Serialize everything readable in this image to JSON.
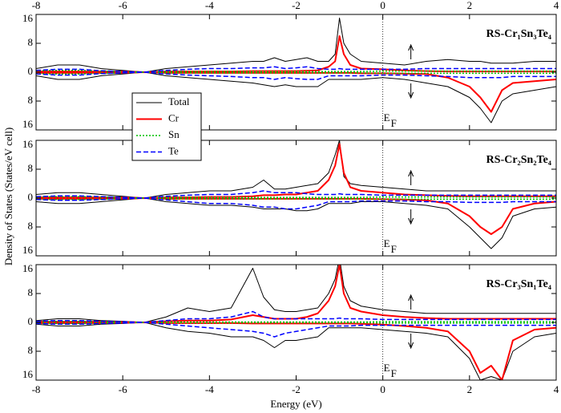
{
  "chart_data": [
    {
      "type": "line",
      "title": "RS-Cr₁Sn₃Te₄",
      "ef": "E",
      "ef_sub": "F",
      "x": [
        -8,
        -7.5,
        -7,
        -6.5,
        -6,
        -5.5,
        -5,
        -4.5,
        -4,
        -3.5,
        -3,
        -2.75,
        -2.5,
        -2.25,
        -2,
        -1.75,
        -1.5,
        -1.25,
        -1.1,
        -1,
        -0.9,
        -0.75,
        -0.5,
        0,
        0.5,
        1,
        1.5,
        2,
        2.25,
        2.5,
        2.75,
        3,
        3.5,
        4
      ],
      "xlim": [
        -8,
        4
      ],
      "xticks": [
        -8,
        -6,
        -4,
        -2,
        0,
        2,
        4
      ],
      "ylim": [
        -16,
        16
      ],
      "yticks": [
        {
          "value": -16,
          "label": "16"
        },
        {
          "value": -8,
          "label": "8"
        },
        0,
        8,
        16
      ],
      "series": [
        {
          "name": "Total",
          "color": "#000000",
          "dash": "none",
          "width": 1,
          "values": [
            1,
            2,
            2,
            1,
            0.5,
            0,
            1,
            1.5,
            2,
            2.5,
            3,
            3,
            4,
            3,
            3.5,
            4,
            3,
            3,
            5,
            15,
            8,
            5,
            3,
            2.5,
            2,
            3,
            3.5,
            3,
            3,
            2.5,
            2.5,
            2.5,
            3,
            3
          ],
          "values_down": [
            -1,
            -2,
            -2,
            -1,
            -0.5,
            0,
            -1,
            -1.5,
            -2,
            -2.5,
            -3,
            -3.5,
            -4,
            -3.5,
            -4,
            -4,
            -4,
            -2,
            -2,
            -2,
            -2,
            -2,
            -2,
            -1.5,
            -2,
            -3,
            -4,
            -7,
            -10,
            -14,
            -8,
            -6,
            -5,
            -4
          ]
        },
        {
          "name": "Cr",
          "color": "#ff0000",
          "dash": "none",
          "width": 2,
          "values": [
            0.2,
            0.2,
            0.2,
            0.2,
            0.2,
            0,
            0.2,
            0.2,
            0.2,
            0.2,
            0.3,
            0.3,
            0.3,
            0.3,
            0.3,
            0.4,
            0.5,
            1.5,
            3,
            10,
            5,
            2,
            1,
            0.8,
            0.5,
            0.3,
            0.2,
            0.2,
            0.2,
            0.2,
            0.2,
            0.2,
            0.2,
            0.2
          ],
          "values_down": [
            -0.2,
            -0.2,
            -0.2,
            -0.2,
            -0.2,
            0,
            -0.2,
            -0.2,
            -0.2,
            -0.2,
            -0.2,
            -0.2,
            -0.2,
            -0.2,
            -0.2,
            -0.2,
            -0.2,
            -0.2,
            -0.2,
            -0.2,
            -0.2,
            -0.2,
            -0.3,
            -0.3,
            -0.4,
            -0.5,
            -1.5,
            -4,
            -7,
            -11,
            -5,
            -3,
            -2.5,
            -2
          ]
        },
        {
          "name": "Sn",
          "color": "#00c000",
          "dash": "2,2",
          "width": 1.5,
          "values": [
            0.4,
            0.5,
            0.5,
            0.3,
            0.2,
            0,
            0.2,
            0.2,
            0.2,
            0.2,
            0.2,
            0.2,
            0.2,
            0.2,
            0.2,
            0.2,
            0.2,
            0.2,
            0.2,
            0.2,
            0.2,
            0.2,
            0.2,
            0.3,
            0.3,
            0.3,
            0.3,
            0.3,
            0.3,
            0.3,
            0.3,
            0.3,
            0.3,
            0.3
          ],
          "values_down": [
            -0.4,
            -0.5,
            -0.5,
            -0.3,
            -0.2,
            0,
            -0.2,
            -0.2,
            -0.2,
            -0.2,
            -0.2,
            -0.2,
            -0.2,
            -0.2,
            -0.2,
            -0.2,
            -0.2,
            -0.2,
            -0.2,
            -0.2,
            -0.2,
            -0.2,
            -0.2,
            -0.3,
            -0.3,
            -0.3,
            -0.3,
            -0.3,
            -0.3,
            -0.3,
            -0.3,
            -0.3,
            -0.3,
            -0.3
          ]
        },
        {
          "name": "Te",
          "color": "#0000ff",
          "dash": "6,3",
          "width": 1.5,
          "values": [
            0.5,
            0.8,
            0.8,
            0.4,
            0.2,
            0,
            0.5,
            0.8,
            1,
            1,
            1.2,
            1.2,
            1.5,
            1,
            1.2,
            1.5,
            1,
            0.8,
            0.8,
            1,
            0.8,
            0.8,
            0.8,
            0.8,
            0.8,
            1,
            1,
            1,
            1,
            1,
            1,
            1,
            1,
            1
          ],
          "values_down": [
            -0.5,
            -0.8,
            -0.8,
            -0.4,
            -0.2,
            0,
            -0.5,
            -0.8,
            -1,
            -1.2,
            -1.5,
            -1.5,
            -2,
            -1.5,
            -1.8,
            -2,
            -2,
            -1,
            -1,
            -1,
            -1,
            -1,
            -1,
            -0.8,
            -0.8,
            -1,
            -1.2,
            -1.5,
            -1.5,
            -1.5,
            -1.5,
            -1.2,
            -1.2,
            -1.2
          ]
        }
      ]
    },
    {
      "type": "line",
      "title": "RS-Cr₂Sn₂Te₄",
      "ef": "E",
      "ef_sub": "F",
      "ylabel": "Density of States (States/eV cell)",
      "x": [
        -8,
        -7.5,
        -7,
        -6.5,
        -6,
        -5.5,
        -5,
        -4.5,
        -4,
        -3.5,
        -3,
        -2.75,
        -2.5,
        -2.25,
        -2,
        -1.75,
        -1.5,
        -1.25,
        -1.1,
        -1,
        -0.9,
        -0.75,
        -0.5,
        0,
        0.5,
        1,
        1.5,
        2,
        2.25,
        2.5,
        2.75,
        3,
        3.5,
        4
      ],
      "xlim": [
        -8,
        4
      ],
      "xticks": [
        -8,
        -6,
        -4,
        -2,
        0,
        2,
        4
      ],
      "ylim": [
        -16,
        16
      ],
      "yticks": [
        {
          "value": -16,
          "label": "16"
        },
        {
          "value": -8,
          "label": "8"
        },
        0,
        8,
        16
      ],
      "series": [
        {
          "color": "#000000",
          "dash": "none",
          "width": 1,
          "values": [
            1,
            1.5,
            1.5,
            1,
            0.5,
            0,
            1,
            1.5,
            2,
            2,
            3,
            5,
            2.5,
            2.5,
            3,
            3.5,
            4,
            7,
            12,
            16,
            6,
            4,
            3.5,
            3,
            2.5,
            2,
            2,
            2,
            2,
            2,
            2,
            2,
            2,
            2
          ],
          "values_down": [
            -1,
            -1.5,
            -1.5,
            -1,
            -0.5,
            0,
            -1,
            -1.5,
            -2,
            -2,
            -2.5,
            -3,
            -3,
            -3,
            -3.5,
            -3.5,
            -3,
            -1.5,
            -1.5,
            -1.5,
            -1.5,
            -1.5,
            -1,
            -1,
            -1.5,
            -2,
            -3,
            -8,
            -11,
            -14,
            -11,
            -5,
            -3,
            -2.5
          ]
        },
        {
          "color": "#ff0000",
          "dash": "none",
          "width": 2,
          "values": [
            0.2,
            0.2,
            0.2,
            0.2,
            0.2,
            0,
            0.2,
            0.2,
            0.3,
            0.3,
            0.5,
            0.8,
            0.8,
            1,
            1,
            1.5,
            2,
            5,
            9,
            15,
            7,
            3,
            2,
            1.5,
            1,
            0.8,
            0.6,
            0.5,
            0.5,
            0.5,
            0.5,
            0.5,
            0.5,
            0.5
          ],
          "values_down": [
            -0.2,
            -0.2,
            -0.2,
            -0.2,
            -0.2,
            0,
            -0.2,
            -0.2,
            -0.2,
            -0.2,
            -0.2,
            -0.2,
            -0.2,
            -0.2,
            -0.2,
            -0.2,
            -0.2,
            -0.2,
            -0.2,
            -0.2,
            -0.2,
            -0.2,
            -0.2,
            -0.3,
            -0.4,
            -0.6,
            -1.5,
            -5,
            -8,
            -10,
            -8,
            -3,
            -1.5,
            -1
          ]
        },
        {
          "color": "#00c000",
          "dash": "2,2",
          "width": 1.5,
          "values": [
            0.3,
            0.4,
            0.4,
            0.3,
            0.2,
            0,
            0.2,
            0.2,
            0.2,
            0.2,
            0.2,
            0.2,
            0.2,
            0.2,
            0.2,
            0.2,
            0.2,
            0.2,
            0.2,
            0.2,
            0.2,
            0.2,
            0.2,
            0.3,
            0.3,
            0.3,
            0.3,
            0.3,
            0.3,
            0.3,
            0.3,
            0.3,
            0.3,
            0.3
          ],
          "values_down": [
            -0.3,
            -0.4,
            -0.4,
            -0.3,
            -0.2,
            0,
            -0.2,
            -0.2,
            -0.2,
            -0.2,
            -0.2,
            -0.2,
            -0.2,
            -0.2,
            -0.2,
            -0.2,
            -0.2,
            -0.2,
            -0.2,
            -0.2,
            -0.2,
            -0.2,
            -0.2,
            -0.3,
            -0.3,
            -0.3,
            -0.3,
            -0.3,
            -0.3,
            -0.3,
            -0.3,
            -0.3,
            -0.3,
            -0.3
          ]
        },
        {
          "color": "#0000ff",
          "dash": "6,3",
          "width": 1.5,
          "values": [
            0.4,
            0.6,
            0.6,
            0.4,
            0.2,
            0,
            0.5,
            0.8,
            1,
            1,
            1.5,
            2,
            1.5,
            1.5,
            1.5,
            1.2,
            1,
            1,
            1,
            1.2,
            1,
            1,
            1,
            0.8,
            0.8,
            0.8,
            0.8,
            0.8,
            0.8,
            0.8,
            0.8,
            0.8,
            0.8,
            0.8
          ],
          "values_down": [
            -0.4,
            -0.6,
            -0.6,
            -0.4,
            -0.2,
            0,
            -0.5,
            -1,
            -1.5,
            -1.5,
            -2,
            -2.5,
            -2.5,
            -3,
            -3,
            -2.5,
            -2,
            -1,
            -1,
            -1,
            -1,
            -1,
            -0.8,
            -0.8,
            -0.8,
            -1,
            -1,
            -1.2,
            -1.2,
            -1.2,
            -1.2,
            -1,
            -1,
            -1
          ]
        }
      ]
    },
    {
      "type": "line",
      "title": "RS-Cr₃Sn₁Te₄",
      "ef": "E",
      "ef_sub": "F",
      "xlabel": "Energy (eV)",
      "x": [
        -8,
        -7.5,
        -7,
        -6.5,
        -6,
        -5.5,
        -5,
        -4.5,
        -4,
        -3.5,
        -3,
        -2.75,
        -2.5,
        -2.25,
        -2,
        -1.75,
        -1.5,
        -1.25,
        -1.1,
        -1,
        -0.9,
        -0.75,
        -0.5,
        0,
        0.5,
        1,
        1.5,
        2,
        2.25,
        2.5,
        2.75,
        3,
        3.5,
        4
      ],
      "xlim": [
        -8,
        4
      ],
      "xticks": [
        -8,
        -6,
        -4,
        -2,
        0,
        2,
        4
      ],
      "ylim": [
        -16,
        16
      ],
      "yticks": [
        {
          "value": -16,
          "label": "16"
        },
        {
          "value": -8,
          "label": "8"
        },
        0,
        8,
        16
      ],
      "series": [
        {
          "color": "#000000",
          "dash": "none",
          "width": 1,
          "values": [
            0.5,
            1,
            1,
            0.5,
            0.3,
            0,
            1.5,
            4,
            3,
            4,
            15,
            7,
            3.5,
            3,
            3,
            3.5,
            4,
            8,
            12,
            18,
            10,
            6,
            4.5,
            3.5,
            3,
            2.5,
            2.5,
            2.5,
            2.5,
            2.5,
            2.5,
            2.5,
            2.5,
            2.5
          ],
          "values_down": [
            -0.5,
            -1,
            -1,
            -0.5,
            -0.3,
            0,
            -1.5,
            -2.5,
            -3,
            -4,
            -4,
            -5,
            -7,
            -5,
            -5,
            -4.5,
            -4,
            -1.5,
            -1.5,
            -1.5,
            -1.5,
            -1.5,
            -1.5,
            -2,
            -2.5,
            -3,
            -4,
            -10,
            -16,
            -15,
            -16,
            -8,
            -4,
            -3
          ]
        },
        {
          "color": "#ff0000",
          "dash": "none",
          "width": 2,
          "values": [
            0.2,
            0.2,
            0.2,
            0.2,
            0.1,
            0,
            0.3,
            0.5,
            0.5,
            0.8,
            2,
            1.5,
            1,
            1,
            1,
            1.5,
            2.5,
            6,
            10,
            16,
            8,
            4,
            3,
            2,
            1.5,
            1.2,
            1,
            1,
            1,
            1,
            1,
            1,
            1,
            1
          ],
          "values_down": [
            -0.2,
            -0.2,
            -0.2,
            -0.2,
            -0.1,
            0,
            -0.2,
            -0.2,
            -0.2,
            -0.2,
            -0.3,
            -0.3,
            -0.3,
            -0.3,
            -0.3,
            -0.3,
            -0.3,
            -0.3,
            -0.3,
            -0.3,
            -0.3,
            -0.3,
            -0.4,
            -0.6,
            -1,
            -1.5,
            -2.5,
            -8,
            -14,
            -12,
            -16,
            -5,
            -2,
            -1.5
          ]
        },
        {
          "color": "#00c000",
          "dash": "2,2",
          "width": 1.5,
          "values": [
            0.2,
            0.3,
            0.3,
            0.2,
            0.1,
            0,
            0.1,
            0.1,
            0.1,
            0.1,
            0.1,
            0.1,
            0.1,
            0.1,
            0.1,
            0.1,
            0.1,
            0.1,
            0.1,
            0.1,
            0.1,
            0.1,
            0.1,
            0.2,
            0.2,
            0.2,
            0.2,
            0.2,
            0.2,
            0.2,
            0.2,
            0.2,
            0.2,
            0.2
          ],
          "values_down": [
            -0.2,
            -0.3,
            -0.3,
            -0.2,
            -0.1,
            0,
            -0.1,
            -0.1,
            -0.1,
            -0.1,
            -0.1,
            -0.1,
            -0.1,
            -0.1,
            -0.1,
            -0.1,
            -0.1,
            -0.1,
            -0.1,
            -0.1,
            -0.1,
            -0.1,
            -0.1,
            -0.2,
            -0.2,
            -0.2,
            -0.2,
            -0.2,
            -0.2,
            -0.2,
            -0.2,
            -0.2,
            -0.2,
            -0.2
          ]
        },
        {
          "color": "#0000ff",
          "dash": "6,3",
          "width": 1.5,
          "values": [
            0.3,
            0.5,
            0.5,
            0.3,
            0.2,
            0,
            0.5,
            1,
            1,
            1.5,
            3,
            1.5,
            1,
            1,
            1,
            1,
            1,
            1,
            1,
            1.2,
            1,
            1,
            1,
            0.8,
            0.8,
            0.8,
            0.8,
            0.8,
            0.8,
            0.8,
            0.8,
            0.8,
            0.8,
            0.8
          ],
          "values_down": [
            -0.3,
            -0.5,
            -0.5,
            -0.3,
            -0.2,
            0,
            -0.5,
            -1,
            -1.5,
            -2,
            -2.5,
            -3,
            -4,
            -3,
            -2.5,
            -2,
            -1.5,
            -1,
            -1,
            -1,
            -1,
            -1,
            -0.8,
            -0.8,
            -0.8,
            -0.8,
            -0.8,
            -0.8,
            -0.8,
            -0.8,
            -0.8,
            -0.8,
            -0.8,
            -0.8
          ]
        }
      ]
    }
  ]
}
